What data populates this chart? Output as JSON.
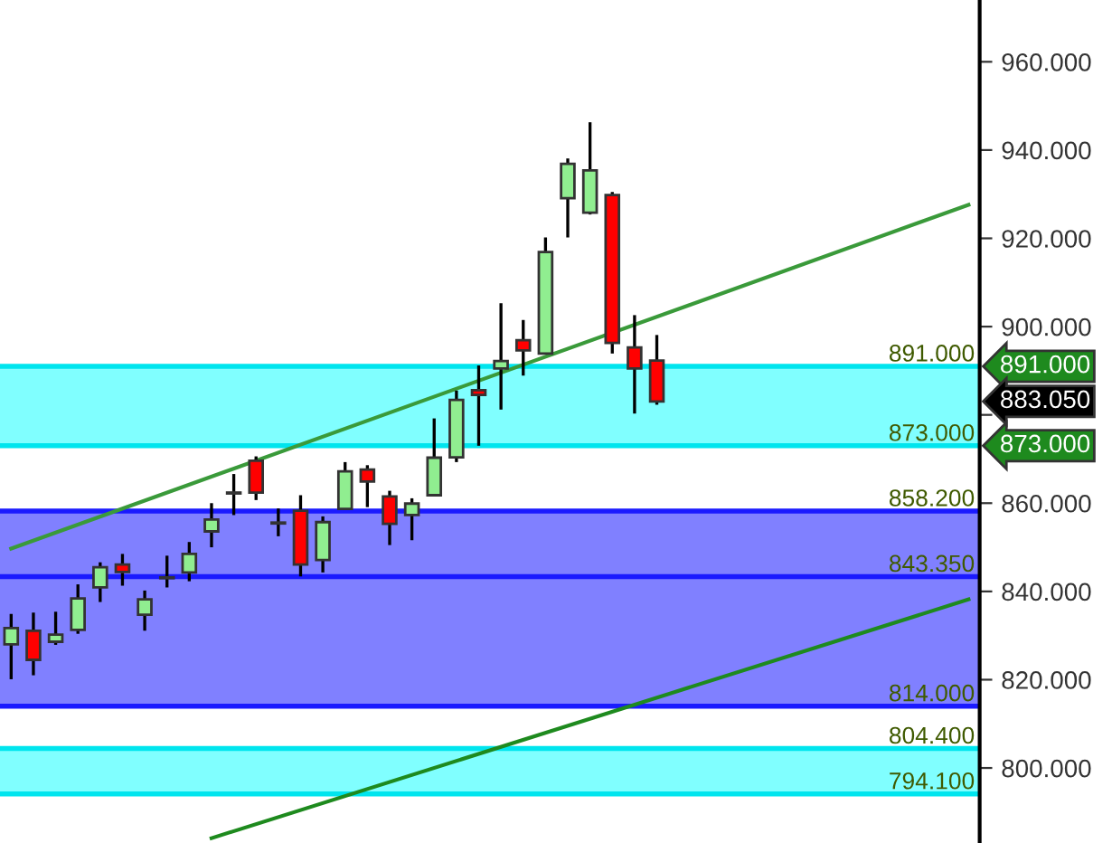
{
  "chart_data": {
    "type": "candlestick",
    "categories": [
      null,
      null,
      null,
      null,
      null,
      null,
      null,
      null,
      null,
      null,
      null,
      null,
      null,
      null,
      null,
      null,
      null,
      null,
      null,
      null,
      null,
      null,
      null,
      null,
      null,
      null,
      null,
      null,
      null,
      null,
      null,
      null,
      null,
      null,
      null,
      null,
      null,
      null,
      null,
      null,
      null,
      null,
      null,
      null
    ],
    "ohlc": [
      [
        828.0,
        834.9,
        820.1,
        831.7
      ],
      [
        831.1,
        835.2,
        821.0,
        824.5
      ],
      [
        828.6,
        835.4,
        827.9,
        830.2
      ],
      [
        831.3,
        841.6,
        830.4,
        838.4
      ],
      [
        840.9,
        846.6,
        837.6,
        845.5
      ],
      [
        846.1,
        848.5,
        841.3,
        844.4
      ],
      [
        834.7,
        840.2,
        831.1,
        838.2
      ],
      [
        843.0,
        848.1,
        840.9,
        843.2
      ],
      [
        844.3,
        851.2,
        842.3,
        848.5
      ],
      [
        853.6,
        860.0,
        850.0,
        856.3
      ],
      [
        862.2,
        866.6,
        857.3,
        862.4
      ],
      [
        869.6,
        870.6,
        860.7,
        862.4
      ],
      [
        855.4,
        858.8,
        852.5,
        855.6
      ],
      [
        858.3,
        861.8,
        843.4,
        846.1
      ],
      [
        847.1,
        857.0,
        844.3,
        855.7
      ],
      [
        858.7,
        869.3,
        858.5,
        867.2
      ],
      [
        867.6,
        868.6,
        859.1,
        864.9
      ],
      [
        861.5,
        862.8,
        850.5,
        855.3
      ],
      [
        857.3,
        861.1,
        851.6,
        859.9
      ],
      [
        861.8,
        879.2,
        861.5,
        870.3
      ],
      [
        870.4,
        885.5,
        869.3,
        883.4
      ],
      [
        885.6,
        891.2,
        873.0,
        884.5
      ],
      [
        890.5,
        905.3,
        881.2,
        892.2
      ],
      [
        896.9,
        901.5,
        888.9,
        894.6
      ],
      [
        893.9,
        920.2,
        893.8,
        916.9
      ],
      [
        929.1,
        938.1,
        920.2,
        936.9
      ],
      [
        925.8,
        946.3,
        925.4,
        935.4
      ],
      [
        929.8,
        930.5,
        893.9,
        896.3
      ],
      [
        895.3,
        902.6,
        880.3,
        890.5
      ],
      [
        892.3,
        898.1,
        882.3,
        883.05
      ],
      null,
      null,
      null,
      null,
      null,
      null,
      null,
      null,
      null,
      null,
      null,
      null,
      null,
      null
    ],
    "colors": [
      "#90ee90",
      "#ff0000",
      "#90ee90",
      "#90ee90",
      "#90ee90",
      "#ff0000",
      "#90ee90",
      "#000000",
      "#90ee90",
      "#90ee90",
      "#000000",
      "#ff0000",
      "#000000",
      "#ff0000",
      "#90ee90",
      "#90ee90",
      "#ff0000",
      "#ff0000",
      "#90ee90",
      "#90ee90",
      "#90ee90",
      "#ff0000",
      "#90ee90",
      "#ff0000",
      "#90ee90",
      "#90ee90",
      "#90ee90",
      "#ff0000",
      "#ff0000",
      "#ff0000",
      null,
      null,
      null,
      null,
      null,
      null,
      null,
      null,
      null,
      null,
      null,
      null,
      null,
      null
    ],
    "series": [
      {
        "type": "line",
        "color": "#3a9a3a",
        "values": [
          849.7,
          null,
          null,
          null,
          null,
          null,
          null,
          null,
          null,
          null,
          null,
          null,
          null,
          null,
          null,
          null,
          null,
          null,
          null,
          null,
          null,
          null,
          null,
          null,
          null,
          null,
          null,
          null,
          null,
          null,
          null,
          null,
          null,
          null,
          null,
          null,
          null,
          null,
          null,
          null,
          null,
          null,
          null,
          927.6
        ]
      },
      {
        "type": "line",
        "color": "#1e8a1e",
        "values": [
          null,
          null,
          null,
          null,
          null,
          null,
          null,
          null,
          null,
          784.1,
          null,
          null,
          null,
          null,
          null,
          null,
          null,
          null,
          null,
          null,
          null,
          null,
          null,
          null,
          null,
          null,
          null,
          null,
          null,
          null,
          null,
          null,
          null,
          null,
          null,
          null,
          null,
          null,
          null,
          null,
          null,
          null,
          null,
          838.2
        ]
      }
    ],
    "bands": [
      {
        "axis": "y",
        "from": 873,
        "to": 891,
        "color": "#80ffff"
      },
      {
        "axis": "y",
        "from": 843.35,
        "to": 858.2,
        "color": "#8080ff"
      },
      {
        "axis": "y",
        "from": 814,
        "to": 843.35,
        "color": "#8080ff"
      },
      {
        "axis": "y",
        "from": 794.1,
        "to": 804.4,
        "color": "#80ffff"
      }
    ],
    "ref_lines": [
      {
        "axis": "y",
        "value": 891,
        "label": "891.000",
        "color": "#00e5ee"
      },
      {
        "axis": "y",
        "value": 873,
        "label": "873.000",
        "color": "#00e5ee"
      },
      {
        "axis": "y",
        "value": 858.2,
        "label": "858.200",
        "color": "#1a1aff"
      },
      {
        "axis": "y",
        "value": 843.35,
        "label": "843.350",
        "color": "#1a1aff"
      },
      {
        "axis": "y",
        "value": 814,
        "label": "814.000",
        "color": "#1a1aff"
      },
      {
        "axis": "y",
        "value": 804.4,
        "label": "804.400",
        "color": "#00e5ee"
      },
      {
        "axis": "y",
        "value": 794.1,
        "label": "794.100",
        "color": "#00e5ee"
      }
    ],
    "annotations": [
      "891.000",
      "883.050",
      "873.000"
    ],
    "ylim": [
      783,
      974
    ],
    "yticks": [
      {
        "value": 800,
        "label": "800.000"
      },
      {
        "value": 820,
        "label": "820.000"
      },
      {
        "value": 840,
        "label": "840.000"
      },
      {
        "value": 860,
        "label": "860.000"
      },
      {
        "value": 880,
        "label": null
      },
      {
        "value": 900,
        "label": "900.000"
      },
      {
        "value": 920,
        "label": "920.000"
      },
      {
        "value": 940,
        "label": "940.000"
      },
      {
        "value": 960,
        "label": "960.000"
      }
    ],
    "legend": false
  }
}
